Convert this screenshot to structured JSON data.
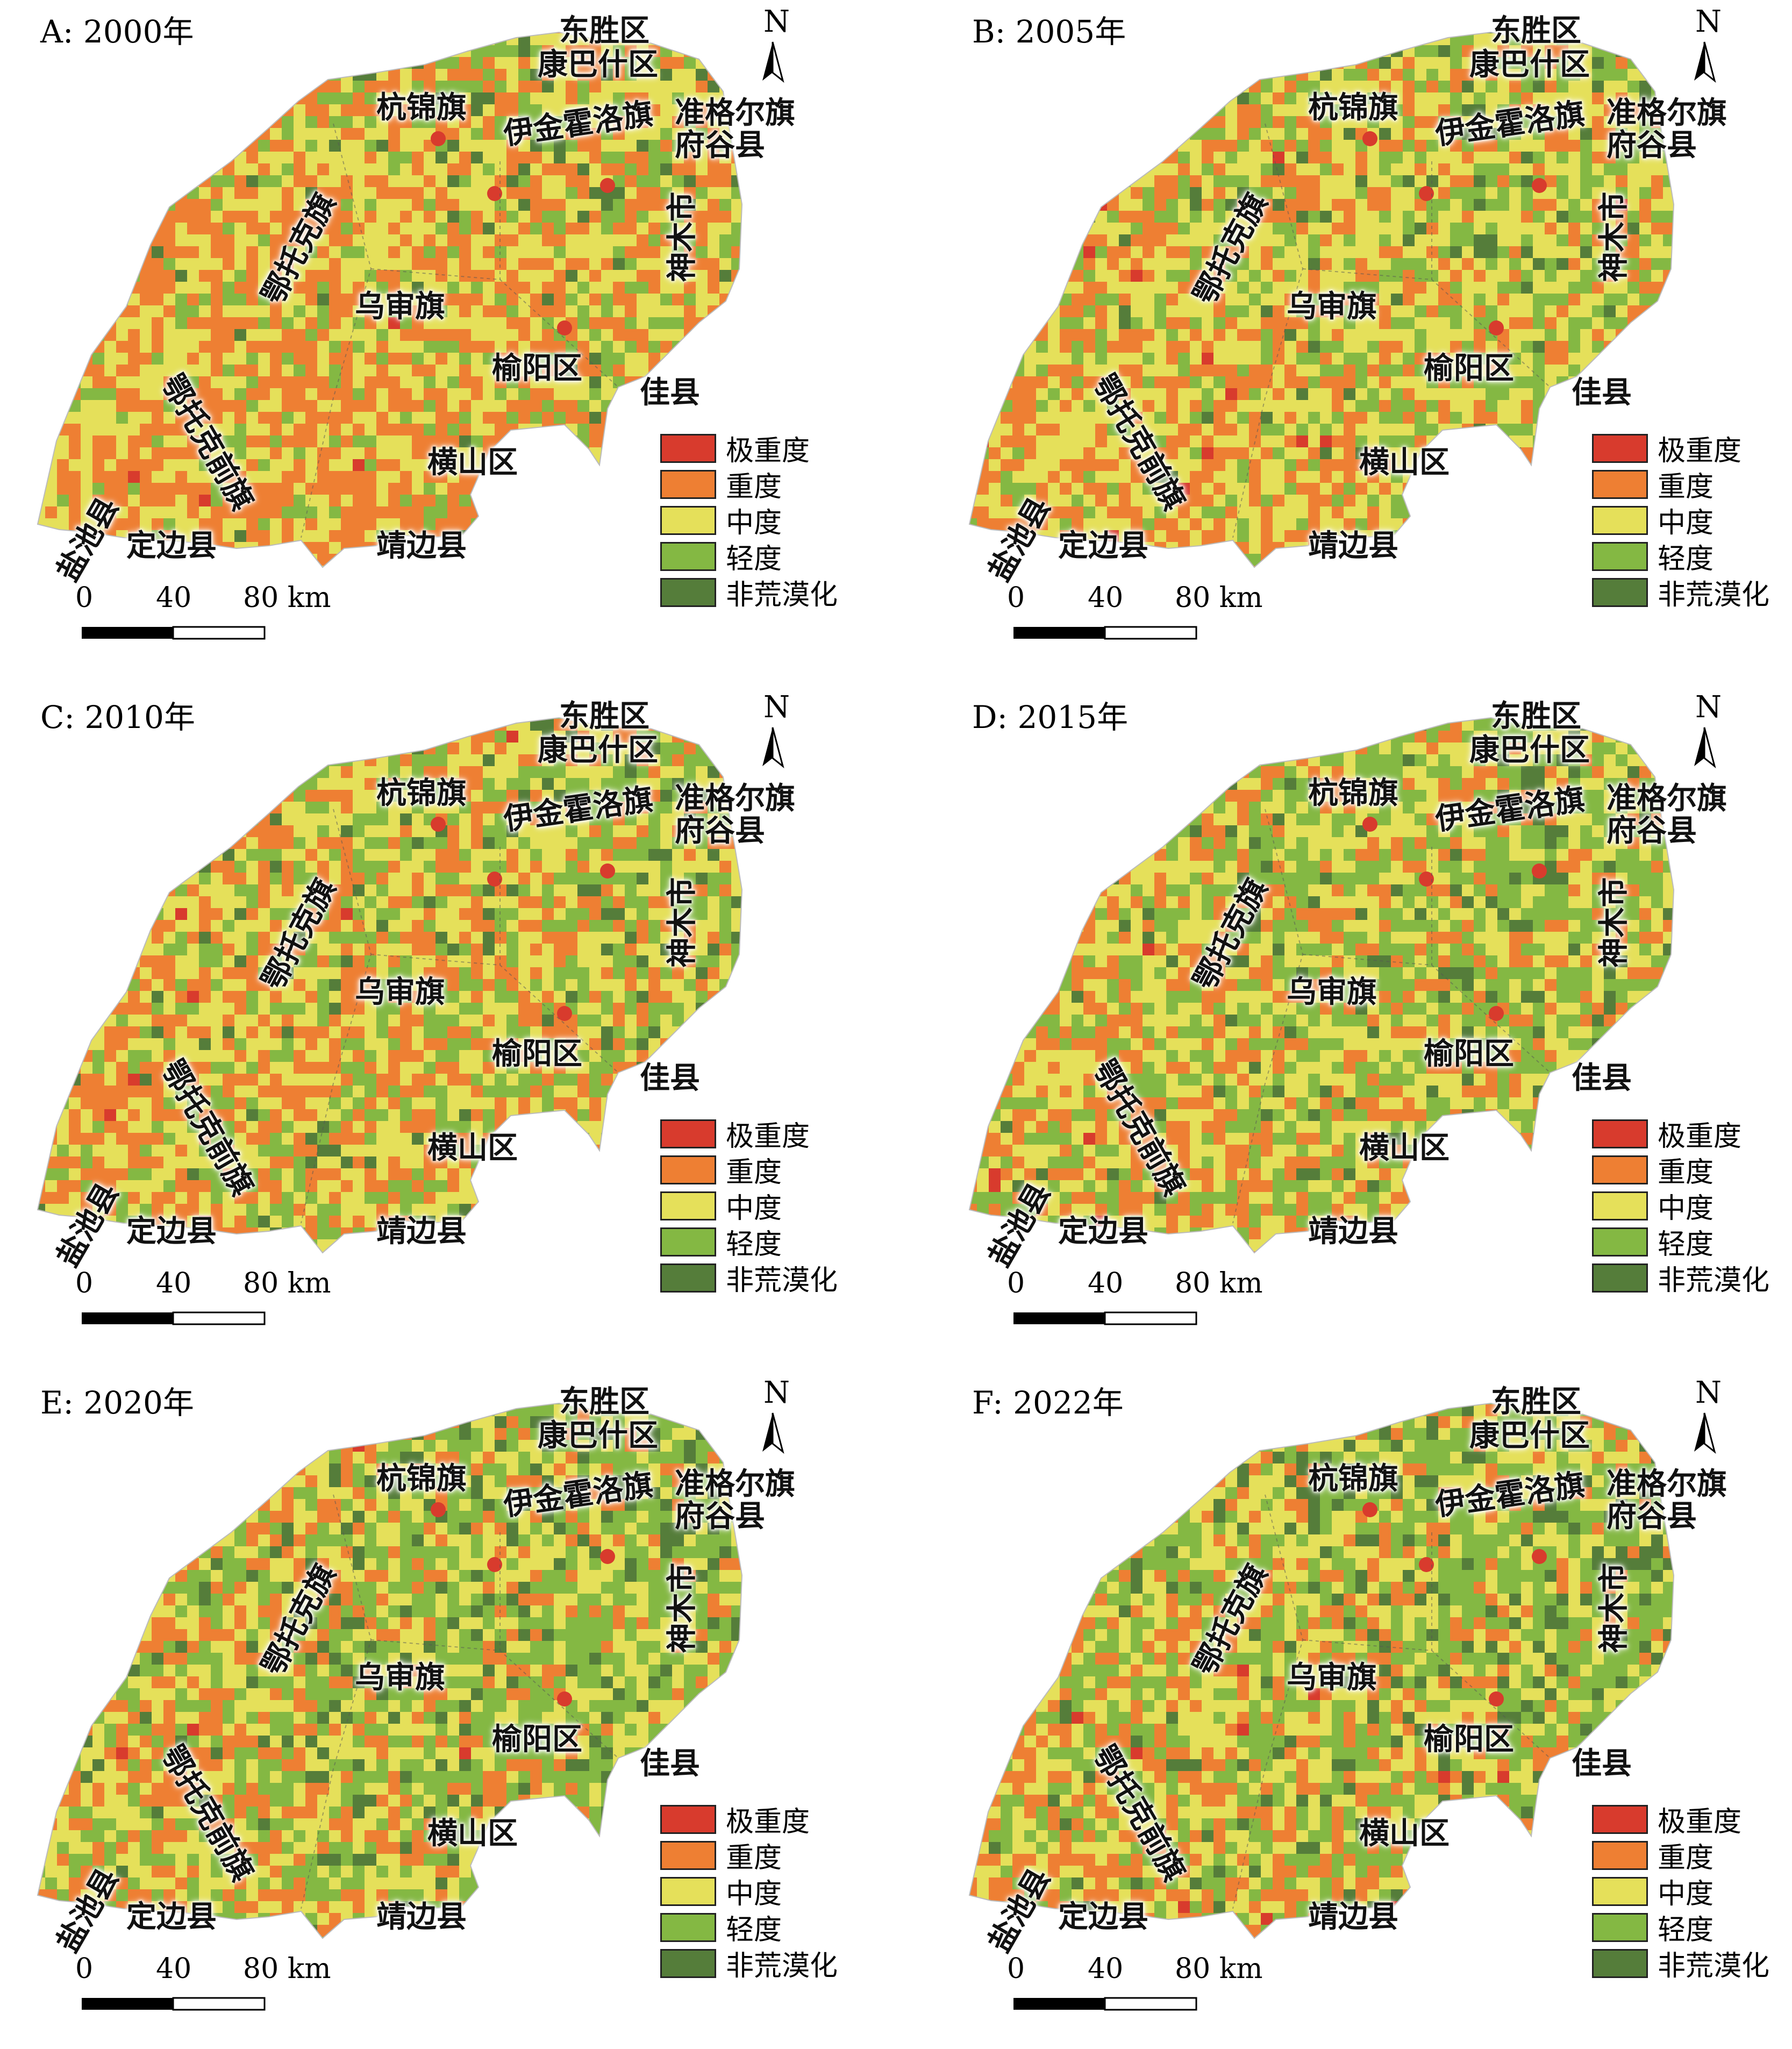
{
  "legend": [
    {
      "label": "极重度",
      "color": "#d83b2d"
    },
    {
      "label": "重度",
      "color": "#ee7f33"
    },
    {
      "label": "中度",
      "color": "#e5e05a"
    },
    {
      "label": "轻度",
      "color": "#84b843"
    },
    {
      "label": "非荒漠化",
      "color": "#557d3a"
    }
  ],
  "north": "N",
  "scale_bar": {
    "labels": [
      "0",
      "40",
      "80 km"
    ]
  },
  "place_names": [
    "东胜区",
    "康巴什区",
    "杭锦旗",
    "伊金霍洛旗",
    "准格尔旗",
    "府谷县",
    "鄂托克旗",
    "神木市",
    "乌审旗",
    "榆阳区",
    "佳县",
    "鄂托克前旗",
    "横山区",
    "盐池县",
    "定边县",
    "靖边县"
  ],
  "panels": [
    {
      "title": "A: 2000年",
      "mix": {
        "极重度": 0.3,
        "重度": 42,
        "中度": 38,
        "轻度": 17,
        "非荒漠化": 3
      }
    },
    {
      "title": "B: 2005年",
      "mix": {
        "极重度": 0.3,
        "重度": 30,
        "中度": 42,
        "轻度": 24,
        "非荒漠化": 4
      }
    },
    {
      "title": "C: 2010年",
      "mix": {
        "极重度": 0.3,
        "重度": 34,
        "中度": 36,
        "轻度": 25,
        "非荒漠化": 5
      }
    },
    {
      "title": "D: 2015年",
      "mix": {
        "极重度": 0.3,
        "重度": 26,
        "中度": 34,
        "轻度": 33,
        "非荒漠化": 7
      }
    },
    {
      "title": "E: 2020年",
      "mix": {
        "极重度": 0.3,
        "重度": 22,
        "中度": 32,
        "轻度": 36,
        "非荒漠化": 10
      }
    },
    {
      "title": "F: 2022年",
      "mix": {
        "极重度": 0.3,
        "重度": 23,
        "中度": 33,
        "轻度": 35,
        "非荒漠化": 9
      }
    }
  ]
}
